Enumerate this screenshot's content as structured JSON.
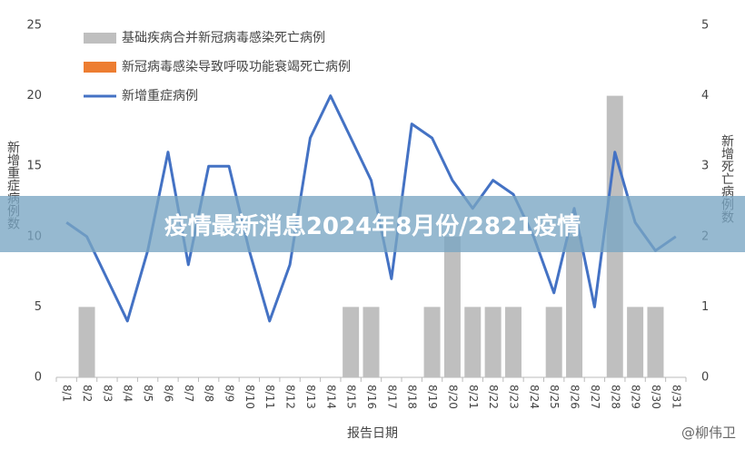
{
  "chart_data": {
    "type": "bar",
    "categories": [
      "8/1",
      "8/2",
      "8/3",
      "8/4",
      "8/5",
      "8/6",
      "8/7",
      "8/8",
      "8/9",
      "8/10",
      "8/11",
      "8/12",
      "8/13",
      "8/14",
      "8/15",
      "8/16",
      "8/17",
      "8/18",
      "8/19",
      "8/20",
      "8/21",
      "8/22",
      "8/23",
      "8/24",
      "8/25",
      "8/26",
      "8/27",
      "8/28",
      "8/29",
      "8/30",
      "8/31"
    ],
    "series": [
      {
        "name": "基础疾病合并新冠病毒感染死亡病例",
        "color": "#bfbfbf",
        "type": "bar",
        "axis": "y2",
        "values": [
          0,
          1,
          0,
          0,
          0,
          0,
          0,
          0,
          0,
          0,
          0,
          0,
          0,
          0,
          1,
          1,
          0,
          0,
          1,
          2,
          1,
          1,
          1,
          0,
          1,
          2,
          0,
          4,
          1,
          1,
          0
        ]
      },
      {
        "name": "新冠病毒感染导致呼吸功能衰竭死亡病例",
        "color": "#ed7d31",
        "type": "bar",
        "axis": "y2",
        "values": [
          0,
          0,
          0,
          0,
          0,
          0,
          0,
          0,
          0,
          0,
          0,
          0,
          0,
          0,
          0,
          0,
          0,
          0,
          0,
          0,
          0,
          0,
          0,
          0,
          0,
          0,
          0,
          0,
          0,
          0,
          0
        ]
      },
      {
        "name": "新增重症病例",
        "color": "#4472c4",
        "type": "line",
        "values": [
          11,
          10,
          7,
          4,
          9,
          16,
          8,
          15,
          15,
          9,
          4,
          8,
          17,
          20,
          17,
          14,
          7,
          18,
          17,
          14,
          12,
          14,
          13,
          10,
          6,
          12,
          5,
          16,
          11,
          9,
          10
        ]
      }
    ],
    "ylim": [
      0,
      25
    ],
    "yticks": [
      0,
      5,
      10,
      15,
      20,
      25
    ],
    "y2lim": [
      0,
      5
    ],
    "y2ticks": [
      0,
      1,
      2,
      3,
      4,
      5
    ],
    "ylabel": "新增重症病例数",
    "y2label": "新增死亡病例数",
    "xlabel": "报告日期",
    "legend": "top-left",
    "grid": false
  },
  "overlay": {
    "banner": "疫情最新消息2024年8月份/2821疫情",
    "watermark": "@柳伟卫"
  }
}
